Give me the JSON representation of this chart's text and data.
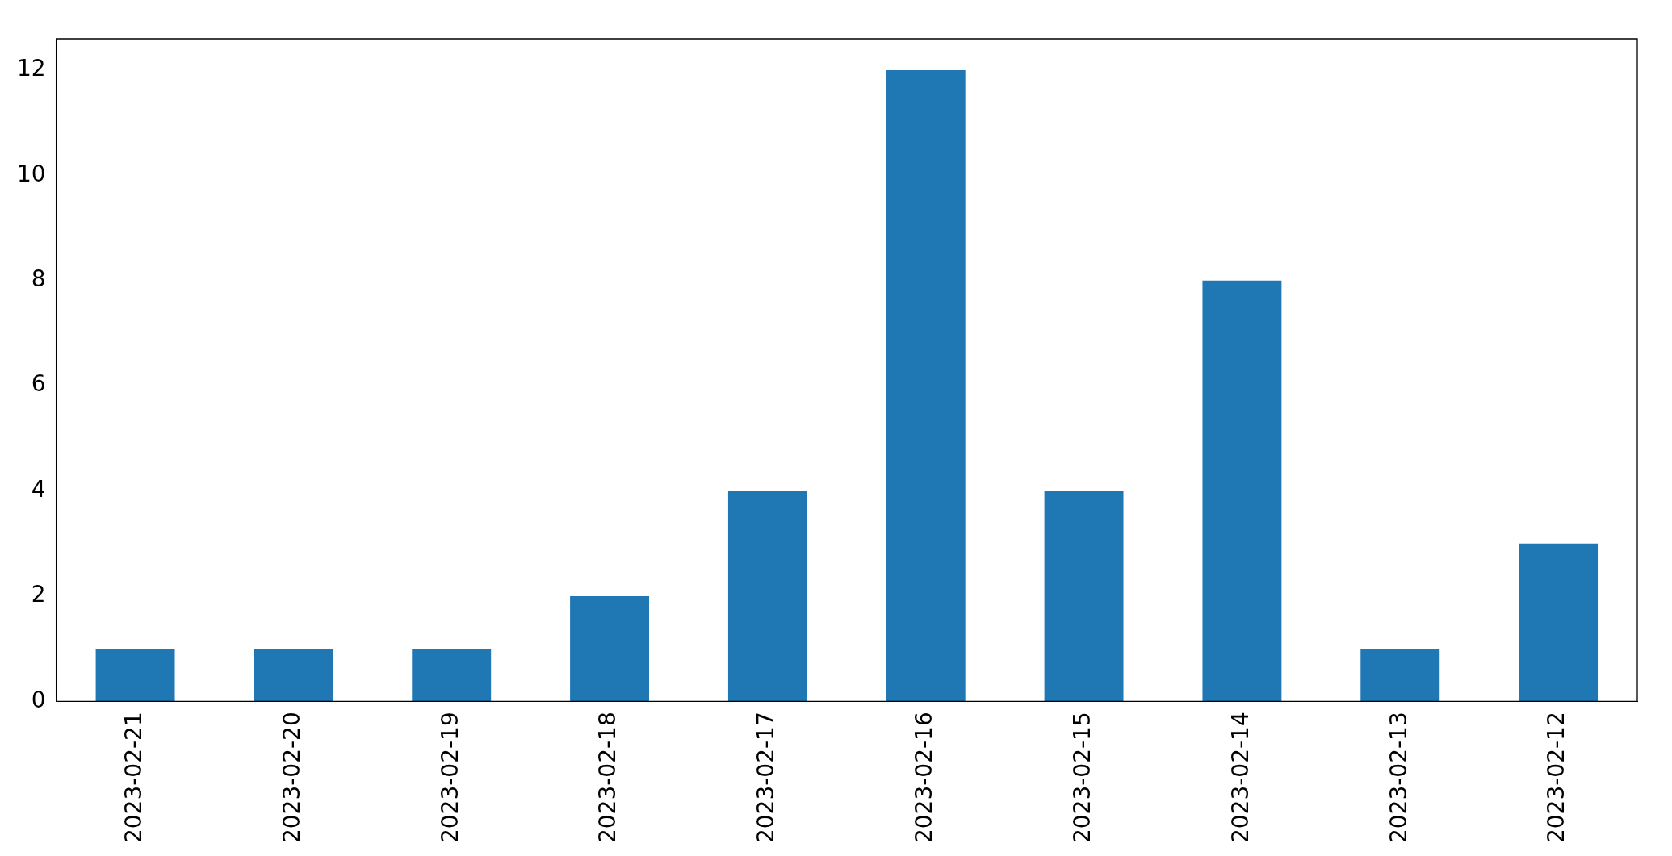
{
  "chart_data": {
    "type": "bar",
    "categories": [
      "2023-02-21",
      "2023-02-20",
      "2023-02-19",
      "2023-02-18",
      "2023-02-17",
      "2023-02-16",
      "2023-02-15",
      "2023-02-14",
      "2023-02-13",
      "2023-02-12"
    ],
    "values": [
      1,
      1,
      1,
      2,
      4,
      12,
      4,
      8,
      1,
      3
    ],
    "color": "#1f77b4",
    "ylim": [
      0,
      12.6
    ],
    "yticks": [
      0,
      2,
      4,
      6,
      8,
      10,
      12
    ],
    "grid": false,
    "legend": false
  }
}
